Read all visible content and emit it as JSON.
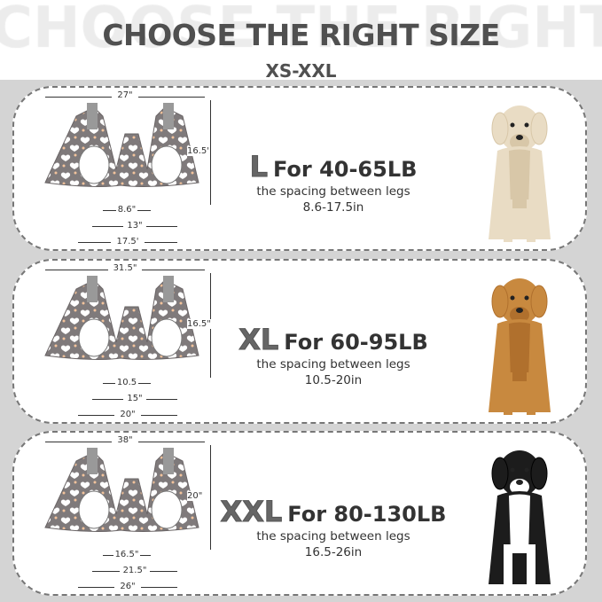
{
  "header": {
    "watermark": "CHOOSE THE RIGHT",
    "title": "CHOOSE THE RIGHT SIZE",
    "range": "XS-XXL"
  },
  "sizes": [
    {
      "size": "L",
      "weight": "For 40-65LB",
      "desc": "the spacing between legs",
      "range": "8.6-17.5in",
      "width": "27\"",
      "height": "16.5'",
      "inner": "8.6\"",
      "middle": "13\"",
      "outer": "17.5'",
      "dog": "labrador"
    },
    {
      "size": "XL",
      "weight": "For 60-95LB",
      "desc": "the spacing between legs",
      "range": "10.5-20in",
      "width": "31.5\"",
      "height": "16.5\"",
      "inner": "10.5",
      "middle": "15\"",
      "outer": "20\"",
      "dog": "golden-retriever"
    },
    {
      "size": "XXL",
      "weight": "For 80-130LB",
      "desc": "the spacing between legs",
      "range": "16.5-26in",
      "width": "38\"",
      "height": "20\"",
      "inner": "16.5\"",
      "middle": "21.5\"",
      "outer": "26\"",
      "dog": "bernese-mountain-dog"
    }
  ],
  "colors": {
    "fabric": "#7f7a7b",
    "text": "#505050"
  }
}
